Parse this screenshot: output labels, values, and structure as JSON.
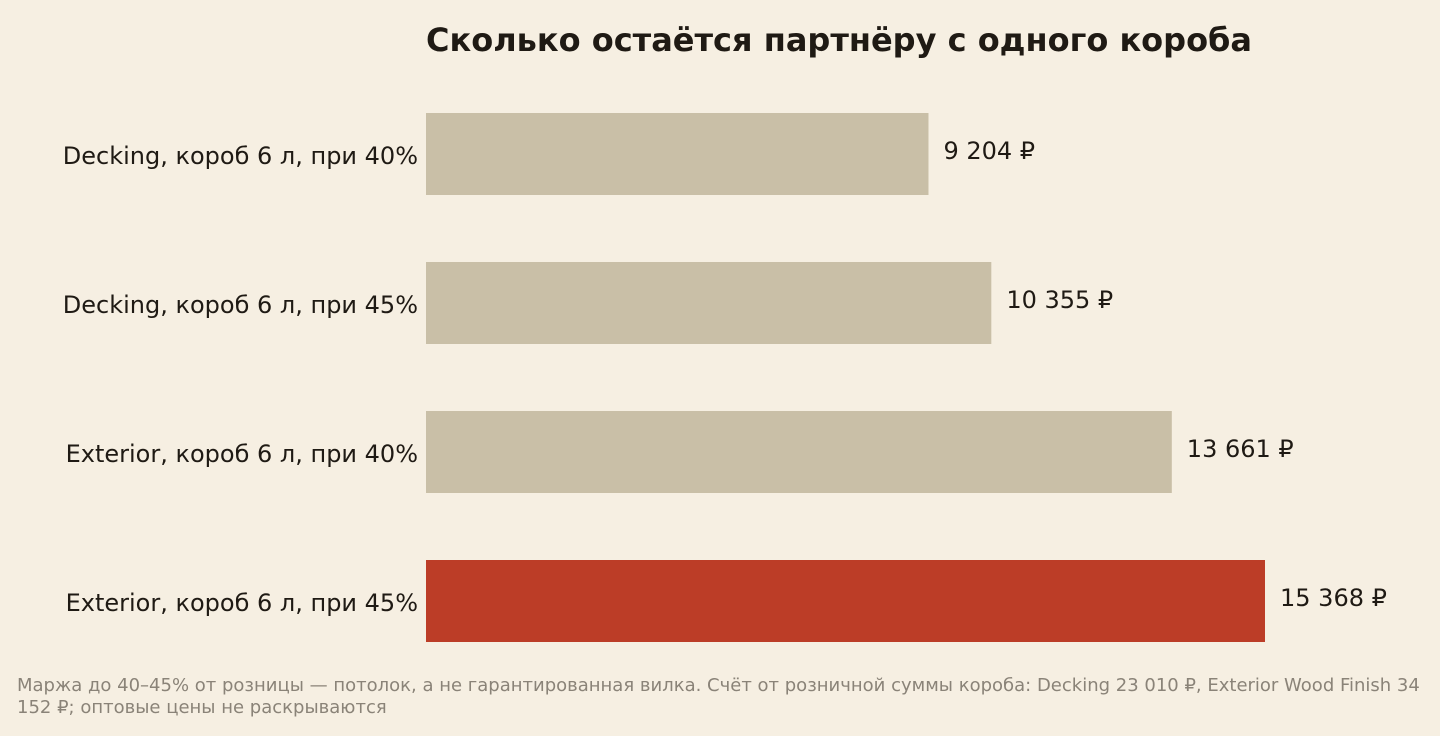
{
  "chart_data": {
    "type": "bar",
    "orientation": "horizontal",
    "title": "Сколько остаётся партнёру с одного короба",
    "categories": [
      "Decking, короб 6 л, при 40%",
      "Decking, короб 6 л, при 45%",
      "Exterior, короб 6 л, при 40%",
      "Exterior, короб 6 л, при 45%"
    ],
    "values": [
      9204,
      10355,
      13661,
      15368
    ],
    "value_labels": [
      "9 204 ₽",
      "10 355 ₽",
      "13 661 ₽",
      "15 368 ₽"
    ],
    "xlim": [
      0,
      15368
    ],
    "grid": false,
    "colors": {
      "default": "#c9bfa7",
      "highlight": "#bc3d27"
    },
    "highlight_index": 3
  },
  "footnote": "Маржа до 40–45% от розницы — потолок, а не гарантированная вилка. Счёт от розничной суммы короба: Decking 23 010 ₽, Exterior Wood Finish 34 152 ₽; оптовые цены не раскрываются"
}
